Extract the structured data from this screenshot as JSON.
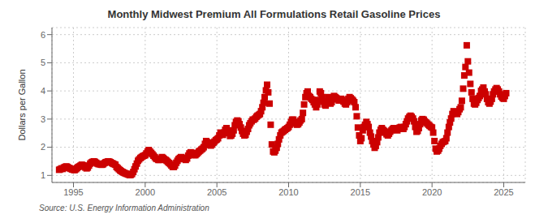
{
  "chart_data": {
    "type": "scatter",
    "title": "Monthly Midwest Premium All Formulations Retail Gasoline Prices",
    "y_label": "Dollars per Gallon",
    "annotations": [
      "Source: U.S. Energy Information Administration"
    ],
    "xlim": [
      1993.5,
      2026.5
    ],
    "ylim": [
      0.75,
      6.25
    ],
    "xticks": [
      1995,
      2000,
      2005,
      2010,
      2015,
      2020,
      2025
    ],
    "yticks": [
      1,
      2,
      3,
      4,
      5,
      6
    ],
    "grid": true,
    "color": "#cc0000",
    "marker": "square",
    "x": [
      1994.0,
      1994.08,
      1994.17,
      1994.25,
      1994.33,
      1994.42,
      1994.5,
      1994.58,
      1994.67,
      1994.75,
      1994.83,
      1994.92,
      1995.0,
      1995.08,
      1995.17,
      1995.25,
      1995.33,
      1995.42,
      1995.5,
      1995.58,
      1995.67,
      1995.75,
      1995.83,
      1995.92,
      1996.0,
      1996.08,
      1996.17,
      1996.25,
      1996.33,
      1996.42,
      1996.5,
      1996.58,
      1996.67,
      1996.75,
      1996.83,
      1996.92,
      1997.0,
      1997.08,
      1997.17,
      1997.25,
      1997.33,
      1997.42,
      1997.5,
      1997.58,
      1997.67,
      1997.75,
      1997.83,
      1997.92,
      1998.0,
      1998.08,
      1998.17,
      1998.25,
      1998.33,
      1998.42,
      1998.5,
      1998.58,
      1998.67,
      1998.75,
      1998.83,
      1998.92,
      1999.0,
      1999.08,
      1999.17,
      1999.25,
      1999.33,
      1999.42,
      1999.5,
      1999.58,
      1999.67,
      1999.75,
      1999.83,
      1999.92,
      2000.0,
      2000.08,
      2000.17,
      2000.25,
      2000.33,
      2000.42,
      2000.5,
      2000.58,
      2000.67,
      2000.75,
      2000.83,
      2000.92,
      2001.0,
      2001.08,
      2001.17,
      2001.25,
      2001.33,
      2001.42,
      2001.5,
      2001.58,
      2001.67,
      2001.75,
      2001.83,
      2001.92,
      2002.0,
      2002.08,
      2002.17,
      2002.25,
      2002.33,
      2002.42,
      2002.5,
      2002.58,
      2002.67,
      2002.75,
      2002.83,
      2002.92,
      2003.0,
      2003.08,
      2003.17,
      2003.25,
      2003.33,
      2003.42,
      2003.5,
      2003.58,
      2003.67,
      2003.75,
      2003.83,
      2003.92,
      2004.0,
      2004.08,
      2004.17,
      2004.25,
      2004.33,
      2004.42,
      2004.5,
      2004.58,
      2004.67,
      2004.75,
      2004.83,
      2004.92,
      2005.0,
      2005.08,
      2005.17,
      2005.25,
      2005.33,
      2005.42,
      2005.5,
      2005.58,
      2005.67,
      2005.75,
      2005.83,
      2005.92,
      2006.0,
      2006.08,
      2006.17,
      2006.25,
      2006.33,
      2006.42,
      2006.5,
      2006.58,
      2006.67,
      2006.75,
      2006.83,
      2006.92,
      2007.0,
      2007.08,
      2007.17,
      2007.25,
      2007.33,
      2007.42,
      2007.5,
      2007.58,
      2007.67,
      2007.75,
      2007.83,
      2007.92,
      2008.0,
      2008.08,
      2008.17,
      2008.25,
      2008.33,
      2008.42,
      2008.5,
      2008.58,
      2008.67,
      2008.75,
      2008.83,
      2008.92,
      2009.0,
      2009.08,
      2009.17,
      2009.25,
      2009.33,
      2009.42,
      2009.5,
      2009.58,
      2009.67,
      2009.75,
      2009.83,
      2009.92,
      2010.0,
      2010.08,
      2010.17,
      2010.25,
      2010.33,
      2010.42,
      2010.5,
      2010.58,
      2010.67,
      2010.75,
      2010.83,
      2010.92,
      2011.0,
      2011.08,
      2011.17,
      2011.25,
      2011.33,
      2011.42,
      2011.5,
      2011.58,
      2011.67,
      2011.75,
      2011.83,
      2011.92,
      2012.0,
      2012.08,
      2012.17,
      2012.25,
      2012.33,
      2012.42,
      2012.5,
      2012.58,
      2012.67,
      2012.75,
      2012.83,
      2012.92,
      2013.0,
      2013.08,
      2013.17,
      2013.25,
      2013.33,
      2013.42,
      2013.5,
      2013.58,
      2013.67,
      2013.75,
      2013.83,
      2013.92,
      2014.0,
      2014.08,
      2014.17,
      2014.25,
      2014.33,
      2014.42,
      2014.5,
      2014.58,
      2014.67,
      2014.75,
      2014.83,
      2014.92,
      2015.0,
      2015.08,
      2015.17,
      2015.25,
      2015.33,
      2015.42,
      2015.5,
      2015.58,
      2015.67,
      2015.75,
      2015.83,
      2015.92,
      2016.0,
      2016.08,
      2016.17,
      2016.25,
      2016.33,
      2016.42,
      2016.5,
      2016.58,
      2016.67,
      2016.75,
      2016.83,
      2016.92,
      2017.0,
      2017.08,
      2017.17,
      2017.25,
      2017.33,
      2017.42,
      2017.5,
      2017.58,
      2017.67,
      2017.75,
      2017.83,
      2017.92,
      2018.0,
      2018.08,
      2018.17,
      2018.25,
      2018.33,
      2018.42,
      2018.5,
      2018.58,
      2018.67,
      2018.75,
      2018.83,
      2018.92,
      2019.0,
      2019.08,
      2019.17,
      2019.25,
      2019.33,
      2019.42,
      2019.5,
      2019.58,
      2019.67,
      2019.75,
      2019.83,
      2019.92,
      2020.0,
      2020.08,
      2020.17,
      2020.25,
      2020.33,
      2020.42,
      2020.5,
      2020.58,
      2020.67,
      2020.75,
      2020.83,
      2020.92,
      2021.0,
      2021.08,
      2021.17,
      2021.25,
      2021.33,
      2021.42,
      2021.5,
      2021.58,
      2021.67,
      2021.75,
      2021.83,
      2021.92,
      2022.0,
      2022.08,
      2022.17,
      2022.25,
      2022.33,
      2022.42,
      2022.5,
      2022.58,
      2022.67,
      2022.75,
      2022.83,
      2022.92,
      2023.0,
      2023.08,
      2023.17,
      2023.25,
      2023.33,
      2023.42,
      2023.5,
      2023.58,
      2023.67,
      2023.75,
      2023.83,
      2023.92,
      2024.0,
      2024.08,
      2024.17,
      2024.25,
      2024.33,
      2024.42,
      2024.5,
      2024.58,
      2024.67,
      2024.75,
      2024.83,
      2024.92,
      2025.0,
      2025.08,
      2025.17
    ],
    "values": [
      1.2,
      1.22,
      1.25,
      1.23,
      1.28,
      1.3,
      1.32,
      1.3,
      1.27,
      1.25,
      1.23,
      1.21,
      1.2,
      1.19,
      1.22,
      1.26,
      1.3,
      1.32,
      1.35,
      1.38,
      1.36,
      1.32,
      1.28,
      1.25,
      1.28,
      1.35,
      1.42,
      1.46,
      1.48,
      1.5,
      1.48,
      1.45,
      1.42,
      1.4,
      1.4,
      1.38,
      1.38,
      1.4,
      1.44,
      1.47,
      1.48,
      1.5,
      1.49,
      1.47,
      1.44,
      1.42,
      1.4,
      1.38,
      1.3,
      1.26,
      1.22,
      1.18,
      1.15,
      1.12,
      1.1,
      1.08,
      1.06,
      1.05,
      1.03,
      1.01,
      1.02,
      1.05,
      1.12,
      1.22,
      1.32,
      1.42,
      1.52,
      1.57,
      1.62,
      1.65,
      1.68,
      1.7,
      1.72,
      1.78,
      1.85,
      1.9,
      1.85,
      1.8,
      1.75,
      1.7,
      1.65,
      1.6,
      1.58,
      1.55,
      1.55,
      1.58,
      1.65,
      1.62,
      1.58,
      1.55,
      1.52,
      1.48,
      1.44,
      1.4,
      1.35,
      1.3,
      1.3,
      1.35,
      1.45,
      1.52,
      1.58,
      1.62,
      1.65,
      1.63,
      1.6,
      1.58,
      1.55,
      1.6,
      1.7,
      1.78,
      1.82,
      1.8,
      1.76,
      1.72,
      1.72,
      1.76,
      1.8,
      1.85,
      1.88,
      1.92,
      1.95,
      2.0,
      2.12,
      2.22,
      2.18,
      2.12,
      2.08,
      2.06,
      2.1,
      2.16,
      2.2,
      2.25,
      2.28,
      2.32,
      2.42,
      2.52,
      2.48,
      2.44,
      2.52,
      2.62,
      2.68,
      2.6,
      2.5,
      2.4,
      2.42,
      2.48,
      2.6,
      2.78,
      2.9,
      2.95,
      2.92,
      2.82,
      2.7,
      2.58,
      2.48,
      2.42,
      2.44,
      2.55,
      2.65,
      2.78,
      2.85,
      2.92,
      2.98,
      2.98,
      3.02,
      3.08,
      3.12,
      3.15,
      3.18,
      3.28,
      3.42,
      3.58,
      3.78,
      4.02,
      4.22,
      3.95,
      3.55,
      2.8,
      2.1,
      1.85,
      1.82,
      1.88,
      1.98,
      2.12,
      2.28,
      2.42,
      2.52,
      2.55,
      2.58,
      2.62,
      2.65,
      2.68,
      2.72,
      2.8,
      2.9,
      2.98,
      2.98,
      2.9,
      2.84,
      2.8,
      2.82,
      2.88,
      2.95,
      3.0,
      3.22,
      3.52,
      3.78,
      3.92,
      3.98,
      3.82,
      3.78,
      3.72,
      3.68,
      3.6,
      3.52,
      3.42,
      3.52,
      3.68,
      3.98,
      3.92,
      3.78,
      3.62,
      3.52,
      3.48,
      3.62,
      3.78,
      3.68,
      3.55,
      3.6,
      3.72,
      3.82,
      3.78,
      3.75,
      3.7,
      3.66,
      3.68,
      3.72,
      3.68,
      3.62,
      3.55,
      3.52,
      3.6,
      3.72,
      3.78,
      3.74,
      3.7,
      3.65,
      3.6,
      3.42,
      3.1,
      2.7,
      2.42,
      2.22,
      2.32,
      2.6,
      2.72,
      2.8,
      2.9,
      2.82,
      2.72,
      2.52,
      2.38,
      2.22,
      2.1,
      1.98,
      2.05,
      2.18,
      2.35,
      2.52,
      2.62,
      2.68,
      2.62,
      2.58,
      2.52,
      2.46,
      2.42,
      2.48,
      2.55,
      2.6,
      2.65,
      2.68,
      2.66,
      2.62,
      2.6,
      2.65,
      2.7,
      2.72,
      2.7,
      2.65,
      2.72,
      2.82,
      2.92,
      3.02,
      3.08,
      3.12,
      3.08,
      3.02,
      2.92,
      2.72,
      2.55,
      2.58,
      2.68,
      2.82,
      2.95,
      3.0,
      2.98,
      2.92,
      2.88,
      2.84,
      2.8,
      2.76,
      2.72,
      2.7,
      2.52,
      2.22,
      1.95,
      1.85,
      1.88,
      1.95,
      2.05,
      2.12,
      2.18,
      2.2,
      2.22,
      2.32,
      2.52,
      2.72,
      2.88,
      3.02,
      3.18,
      3.28,
      3.25,
      3.2,
      3.18,
      3.25,
      3.35,
      3.42,
      3.65,
      4.08,
      4.55,
      4.85,
      5.62,
      5.05,
      4.65,
      4.25,
      3.95,
      3.72,
      3.55,
      3.52,
      3.58,
      3.68,
      3.75,
      3.82,
      4.0,
      4.05,
      4.12,
      3.98,
      3.88,
      3.72,
      3.6,
      3.55,
      3.62,
      3.72,
      3.88,
      3.98,
      4.05,
      4.1,
      4.05,
      3.98,
      3.88,
      3.8,
      3.75,
      3.72,
      3.82,
      3.92
    ]
  }
}
